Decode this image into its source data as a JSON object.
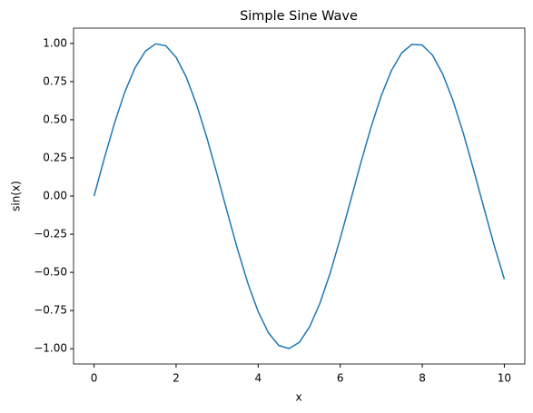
{
  "chart_data": {
    "type": "line",
    "title": "Simple Sine Wave",
    "x_label": "x",
    "y_label": "sin(x)",
    "x": [
      0,
      0.25,
      0.5,
      0.75,
      1,
      1.25,
      1.5,
      1.75,
      2,
      2.25,
      2.5,
      2.75,
      3,
      3.25,
      3.5,
      3.75,
      4,
      4.25,
      4.5,
      4.75,
      5,
      5.25,
      5.5,
      5.75,
      6,
      6.25,
      6.5,
      6.75,
      7,
      7.25,
      7.5,
      7.75,
      8,
      8.25,
      8.5,
      8.75,
      9,
      9.25,
      9.5,
      9.75,
      10
    ],
    "values": [
      0,
      0.247,
      0.479,
      0.682,
      0.841,
      0.949,
      0.997,
      0.984,
      0.909,
      0.778,
      0.598,
      0.382,
      0.141,
      -0.108,
      -0.351,
      -0.572,
      -0.757,
      -0.895,
      -0.978,
      -0.999,
      -0.959,
      -0.859,
      -0.706,
      -0.509,
      -0.279,
      -0.033,
      0.215,
      0.45,
      0.657,
      0.823,
      0.938,
      0.994,
      0.989,
      0.923,
      0.798,
      0.625,
      0.412,
      0.174,
      -0.075,
      -0.32,
      -0.544
    ],
    "color": "#1f77b4",
    "xlim": [
      -0.5,
      10.5
    ],
    "xticks": [
      0,
      2,
      4,
      6,
      8,
      10
    ],
    "ylim": [
      -1.1,
      1.1
    ],
    "yticks": [
      {
        "value": -1,
        "label": "−1.00"
      },
      {
        "value": -0.75,
        "label": "−0.75"
      },
      {
        "value": -0.5,
        "label": "−0.50"
      },
      {
        "value": -0.25,
        "label": "−0.25"
      },
      {
        "value": 0,
        "label": "0.00"
      },
      {
        "value": 0.25,
        "label": "0.25"
      },
      {
        "value": 0.5,
        "label": "0.50"
      },
      {
        "value": 0.75,
        "label": "0.75"
      },
      {
        "value": 1,
        "label": "1.00"
      }
    ],
    "grid": false
  }
}
